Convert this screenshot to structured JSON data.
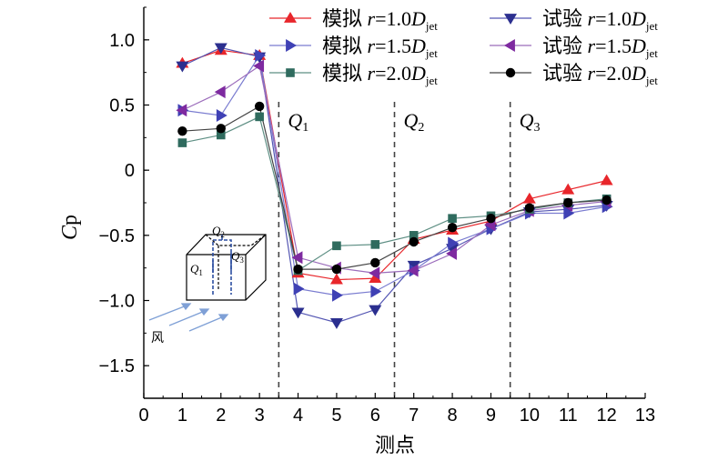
{
  "chart_data": {
    "type": "line",
    "xlabel": "测点",
    "ylabel": {
      "main": "C",
      "sub": "p"
    },
    "xlim": [
      0,
      13
    ],
    "ylim": [
      -1.75,
      1.25
    ],
    "xticks": [
      0,
      1,
      2,
      3,
      4,
      5,
      6,
      7,
      8,
      9,
      10,
      11,
      12,
      13
    ],
    "yticks": [
      1.0,
      0.5,
      0,
      -0.5,
      -1.0,
      -1.5
    ],
    "ytick_labels": [
      "1.0",
      "0.5",
      "0",
      "−0.5",
      "−1.0",
      "−1.5"
    ],
    "xtick_labels": [
      "0",
      "1",
      "2",
      "3",
      "4",
      "5",
      "6",
      "7",
      "8",
      "9",
      "10",
      "11",
      "12",
      "13"
    ],
    "grid": false,
    "legend_placement": "top",
    "dividers": [
      {
        "x": 3.5,
        "label": "Q",
        "sub": "1"
      },
      {
        "x": 6.5,
        "label": "Q",
        "sub": "2"
      },
      {
        "x": 9.5,
        "label": "Q",
        "sub": "3"
      }
    ],
    "x": [
      1,
      2,
      3,
      4,
      5,
      6,
      7,
      8,
      9,
      10,
      11,
      12
    ],
    "series": [
      {
        "name": "模拟 r=1.0Djet",
        "legend": {
          "prefix": "模拟",
          "r": "r",
          "value": "=1.0",
          "D": "D",
          "sub": "jet"
        },
        "color": "#e8262b",
        "line": "#e8262b",
        "marker": "triangle-up",
        "values": [
          0.82,
          0.92,
          0.88,
          -0.79,
          -0.84,
          -0.83,
          -0.53,
          -0.46,
          -0.39,
          -0.22,
          -0.15,
          -0.08
        ]
      },
      {
        "name": "试验 r=1.0Djet",
        "legend": {
          "prefix": "试验",
          "r": "r",
          "value": "=1.0",
          "D": "D",
          "sub": "jet"
        },
        "color": "#2b2f8f",
        "line": "#5456b3",
        "marker": "triangle-down",
        "values": [
          0.8,
          0.94,
          0.87,
          -1.09,
          -1.17,
          -1.07,
          -0.73,
          -0.6,
          -0.45,
          -0.32,
          -0.3,
          -0.27
        ]
      },
      {
        "name": "模拟 r=1.5Djet",
        "legend": {
          "prefix": "模拟",
          "r": "r",
          "value": "=1.5",
          "D": "D",
          "sub": "jet"
        },
        "color": "#3f41b5",
        "line": "#7a7cd0",
        "marker": "triangle-right",
        "values": [
          0.46,
          0.42,
          0.88,
          -0.91,
          -0.96,
          -0.93,
          -0.77,
          -0.56,
          -0.45,
          -0.33,
          -0.33,
          -0.28
        ]
      },
      {
        "name": "试验 r=1.5Djet",
        "legend": {
          "prefix": "试验",
          "r": "r",
          "value": "=1.5",
          "D": "D",
          "sub": "jet"
        },
        "color": "#7e2aa0",
        "line": "#9b6cbb",
        "marker": "triangle-left",
        "values": [
          0.46,
          0.6,
          0.8,
          -0.67,
          -0.75,
          -0.79,
          -0.77,
          -0.64,
          -0.42,
          -0.31,
          -0.27,
          -0.24
        ]
      },
      {
        "name": "模拟 r=2.0Djet",
        "legend": {
          "prefix": "模拟",
          "r": "r",
          "value": "=2.0",
          "D": "D",
          "sub": "jet"
        },
        "color": "#2f6b5e",
        "line": "#5e8f84",
        "marker": "square",
        "values": [
          0.21,
          0.27,
          0.41,
          -0.77,
          -0.58,
          -0.57,
          -0.5,
          -0.37,
          -0.35,
          -0.3,
          -0.25,
          -0.22
        ]
      },
      {
        "name": "试验 r=2.0Djet",
        "legend": {
          "prefix": "试验",
          "r": "r",
          "value": "=2.0",
          "D": "D",
          "sub": "jet"
        },
        "color": "#000000",
        "line": "#444444",
        "marker": "circle",
        "values": [
          0.3,
          0.32,
          0.49,
          -0.76,
          -0.76,
          -0.71,
          -0.55,
          -0.44,
          -0.37,
          -0.29,
          -0.25,
          -0.23
        ]
      }
    ],
    "inset": {
      "labels": [
        {
          "main": "Q",
          "sub": "1"
        },
        {
          "main": "Q",
          "sub": "2"
        },
        {
          "main": "Q",
          "sub": "3"
        }
      ],
      "wind_label": "风"
    }
  }
}
